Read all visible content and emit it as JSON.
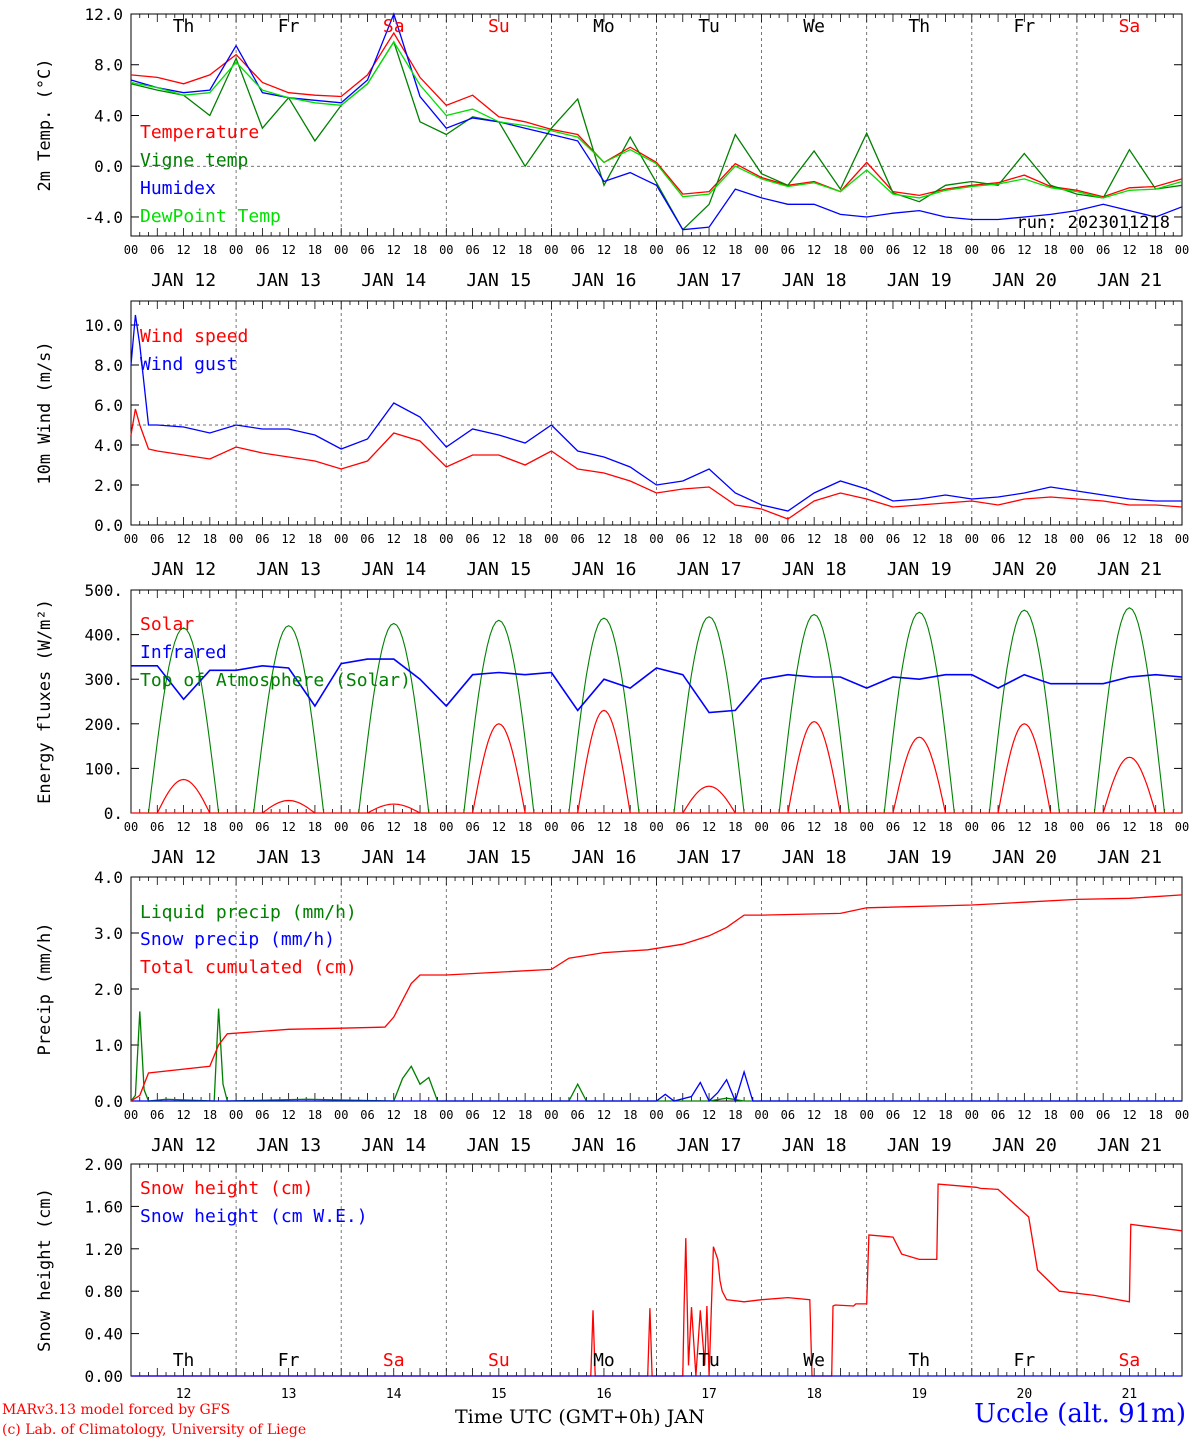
{
  "footer": {
    "model_line1": "MARv3.13 model forced by GFS",
    "model_line2": "(c) Lab. of Climatology, University of Liege",
    "x_axis_label": "Time UTC (GMT+0h) JAN",
    "station": "Uccle (alt. 91m)"
  },
  "days": [
    {
      "dow": "Th",
      "date": "JAN 12",
      "num": "12",
      "weekend": false
    },
    {
      "dow": "Fr",
      "date": "JAN 13",
      "num": "13",
      "weekend": false
    },
    {
      "dow": "Sa",
      "date": "JAN 14",
      "num": "14",
      "weekend": true
    },
    {
      "dow": "Su",
      "date": "JAN 15",
      "num": "15",
      "weekend": true
    },
    {
      "dow": "Mo",
      "date": "JAN 16",
      "num": "16",
      "weekend": false
    },
    {
      "dow": "Tu",
      "date": "JAN 17",
      "num": "17",
      "weekend": false
    },
    {
      "dow": "We",
      "date": "JAN 18",
      "num": "18",
      "weekend": false
    },
    {
      "dow": "Th",
      "date": "JAN 19",
      "num": "19",
      "weekend": false
    },
    {
      "dow": "Fr",
      "date": "JAN 20",
      "num": "20",
      "weekend": false
    },
    {
      "dow": "Sa",
      "date": "JAN 21",
      "num": "21",
      "weekend": true
    }
  ],
  "hour_labels": [
    "00",
    "06",
    "12",
    "18"
  ],
  "colors": {
    "red": "#ff0000",
    "green": "#008000",
    "blue": "#0000ff",
    "light_green": "#00e000",
    "weekend": "#ff0000"
  },
  "chart_data": [
    {
      "id": "temp",
      "type": "line",
      "ylabel": "2m Temp. (°C)",
      "ylim": [
        -5.5,
        12.0
      ],
      "ticks": [
        "12.0",
        "8.0",
        "4.0",
        "0.0",
        "-4.0"
      ],
      "tick_values": [
        12,
        8,
        4,
        0,
        -4
      ],
      "ref_line": 0,
      "annotation": "run: 2023011218",
      "series": [
        {
          "name": "Temperature",
          "color": "#ff0000",
          "x": [
            0,
            6,
            12,
            18,
            24,
            30,
            36,
            42,
            48,
            54,
            60,
            66,
            72,
            78,
            84,
            90,
            96,
            102,
            108,
            114,
            120,
            126,
            132,
            138,
            144,
            150,
            156,
            162,
            168,
            174,
            180,
            186,
            192,
            198,
            204,
            210,
            216,
            222,
            228,
            234,
            240
          ],
          "values": [
            7.2,
            7.0,
            6.5,
            7.2,
            8.8,
            6.6,
            5.8,
            5.6,
            5.5,
            7.2,
            10.5,
            7.0,
            4.8,
            5.6,
            3.9,
            3.5,
            2.9,
            2.5,
            0.3,
            1.5,
            0.3,
            -2.2,
            -2.0,
            0.2,
            -0.9,
            -1.5,
            -1.2,
            -2.0,
            0.3,
            -2.0,
            -2.3,
            -1.8,
            -1.5,
            -1.3,
            -0.7,
            -1.6,
            -1.9,
            -2.4,
            -1.7,
            -1.6,
            -1.0
          ]
        },
        {
          "name": "Vigne temp",
          "color": "#008000",
          "x": [
            0,
            6,
            12,
            18,
            24,
            30,
            36,
            42,
            48,
            54,
            60,
            66,
            72,
            78,
            84,
            90,
            96,
            102,
            108,
            114,
            120,
            126,
            132,
            138,
            144,
            150,
            156,
            162,
            168,
            174,
            180,
            186,
            192,
            198,
            204,
            210,
            216,
            222,
            228,
            234,
            240
          ],
          "values": [
            6.5,
            6.0,
            5.6,
            4.0,
            8.5,
            3.0,
            5.4,
            2.0,
            4.8,
            6.5,
            9.8,
            3.5,
            2.5,
            3.9,
            3.5,
            0.0,
            3.0,
            5.3,
            -1.5,
            2.3,
            -1.3,
            -5.0,
            -3.0,
            2.5,
            -0.6,
            -1.5,
            1.2,
            -1.8,
            2.6,
            -2.1,
            -2.8,
            -1.5,
            -1.2,
            -1.5,
            1.0,
            -1.5,
            -2.2,
            -2.5,
            1.3,
            -1.8,
            -1.5
          ]
        },
        {
          "name": "Humidex",
          "color": "#0000ff",
          "x": [
            0,
            6,
            12,
            18,
            24,
            30,
            36,
            42,
            48,
            54,
            60,
            66,
            72,
            78,
            84,
            90,
            96,
            102,
            108,
            114,
            120,
            126,
            132,
            138,
            144,
            150,
            156,
            162,
            168,
            174,
            180,
            186,
            192,
            198,
            204,
            210,
            216,
            222,
            228,
            234,
            240
          ],
          "values": [
            6.8,
            6.2,
            5.8,
            6.0,
            9.5,
            5.8,
            5.4,
            5.2,
            5.0,
            6.8,
            12.0,
            5.5,
            3.0,
            3.8,
            3.5,
            3.0,
            2.5,
            2.0,
            -1.2,
            -0.5,
            -1.5,
            -5.0,
            -4.8,
            -1.8,
            -2.5,
            -3.0,
            -3.0,
            -3.8,
            -4.0,
            -3.7,
            -3.5,
            -4.0,
            -4.2,
            -4.2,
            -4.0,
            -3.8,
            -3.5,
            -3.0,
            -3.5,
            -4.0,
            -3.2
          ]
        },
        {
          "name": "DewPoint Temp",
          "color": "#00e000",
          "x": [
            0,
            6,
            12,
            18,
            24,
            30,
            36,
            42,
            48,
            54,
            60,
            66,
            72,
            78,
            84,
            90,
            96,
            102,
            108,
            114,
            120,
            126,
            132,
            138,
            144,
            150,
            156,
            162,
            168,
            174,
            180,
            186,
            192,
            198,
            204,
            210,
            216,
            222,
            228,
            234,
            240
          ],
          "values": [
            6.6,
            6.2,
            5.6,
            5.8,
            8.2,
            6.0,
            5.4,
            5.0,
            4.8,
            6.5,
            9.8,
            6.4,
            4.0,
            4.5,
            3.5,
            3.2,
            2.8,
            2.3,
            0.3,
            1.3,
            0.2,
            -2.4,
            -2.2,
            0.0,
            -1.0,
            -1.6,
            -1.3,
            -2.0,
            -0.3,
            -2.2,
            -2.5,
            -1.9,
            -1.6,
            -1.4,
            -1.0,
            -1.7,
            -2.0,
            -2.5,
            -1.9,
            -1.8,
            -1.2
          ]
        }
      ]
    },
    {
      "id": "wind",
      "type": "line",
      "ylabel": "10m Wind (m/s)",
      "ylim": [
        0,
        11.2
      ],
      "ticks": [
        "10.0",
        "8.0",
        "6.0",
        "4.0",
        "2.0",
        "0.0"
      ],
      "tick_values": [
        10,
        8,
        6,
        4,
        2,
        0
      ],
      "ref_line": 5,
      "series": [
        {
          "name": "Wind speed",
          "color": "#ff0000",
          "x": [
            0,
            1,
            2,
            4,
            6,
            12,
            18,
            24,
            30,
            36,
            42,
            48,
            54,
            60,
            66,
            72,
            78,
            84,
            90,
            96,
            102,
            108,
            114,
            120,
            126,
            132,
            138,
            144,
            150,
            156,
            162,
            168,
            174,
            180,
            186,
            192,
            198,
            204,
            210,
            216,
            222,
            228,
            234,
            240
          ],
          "values": [
            4.5,
            5.8,
            5.0,
            3.8,
            3.7,
            3.5,
            3.3,
            3.9,
            3.6,
            3.4,
            3.2,
            2.8,
            3.2,
            4.6,
            4.2,
            2.9,
            3.5,
            3.5,
            3.0,
            3.7,
            2.8,
            2.6,
            2.2,
            1.6,
            1.8,
            1.9,
            1.0,
            0.8,
            0.3,
            1.2,
            1.6,
            1.3,
            0.9,
            1.0,
            1.1,
            1.2,
            1.0,
            1.3,
            1.4,
            1.3,
            1.2,
            1.0,
            1.0,
            0.9
          ]
        },
        {
          "name": "Wind gust",
          "color": "#0000ff",
          "x": [
            0,
            1,
            2,
            4,
            6,
            12,
            18,
            24,
            30,
            36,
            42,
            48,
            54,
            60,
            66,
            72,
            78,
            84,
            90,
            96,
            102,
            108,
            114,
            120,
            126,
            132,
            138,
            144,
            150,
            156,
            162,
            168,
            174,
            180,
            186,
            192,
            198,
            204,
            210,
            216,
            222,
            228,
            234,
            240
          ],
          "values": [
            8.0,
            10.5,
            9.0,
            5.0,
            5.0,
            4.9,
            4.6,
            5.0,
            4.8,
            4.8,
            4.5,
            3.8,
            4.3,
            6.1,
            5.4,
            3.9,
            4.8,
            4.5,
            4.1,
            5.0,
            3.7,
            3.4,
            2.9,
            2.0,
            2.2,
            2.8,
            1.6,
            1.0,
            0.7,
            1.6,
            2.2,
            1.8,
            1.2,
            1.3,
            1.5,
            1.3,
            1.4,
            1.6,
            1.9,
            1.7,
            1.5,
            1.3,
            1.2,
            1.2
          ]
        }
      ]
    },
    {
      "id": "energy",
      "type": "line",
      "ylabel": "Energy fluxes (W/m²)",
      "ylim": [
        0,
        500
      ],
      "ticks": [
        "500.",
        "400.",
        "300.",
        "200.",
        "100.",
        "0."
      ],
      "tick_values": [
        500,
        400,
        300,
        200,
        100,
        0
      ],
      "solar_peaks": [
        75,
        28,
        20,
        200,
        230,
        60,
        205,
        170,
        200,
        125
      ],
      "toa_peaks": [
        415,
        420,
        425,
        432,
        437,
        440,
        445,
        450,
        455,
        460
      ],
      "series": [
        {
          "name": "Solar",
          "color": "#ff0000"
        },
        {
          "name": "Infrared",
          "color": "#0000ff",
          "x": [
            0,
            6,
            12,
            18,
            24,
            30,
            36,
            42,
            48,
            54,
            60,
            66,
            72,
            78,
            84,
            90,
            96,
            102,
            108,
            114,
            120,
            126,
            132,
            138,
            144,
            150,
            156,
            162,
            168,
            174,
            180,
            186,
            192,
            198,
            204,
            210,
            216,
            222,
            228,
            234,
            240
          ],
          "values": [
            330,
            330,
            255,
            320,
            320,
            330,
            325,
            240,
            335,
            345,
            345,
            300,
            240,
            310,
            315,
            310,
            315,
            230,
            300,
            280,
            325,
            310,
            225,
            230,
            300,
            310,
            305,
            305,
            280,
            305,
            300,
            310,
            310,
            280,
            310,
            290,
            290,
            290,
            305,
            310,
            305
          ]
        },
        {
          "name": "Top of Atmosphere (Solar)",
          "color": "#008000"
        }
      ]
    },
    {
      "id": "precip",
      "type": "line",
      "ylabel": "Precip (mm/h)",
      "ylim": [
        0,
        4.0
      ],
      "ticks": [
        "4.0",
        "3.0",
        "2.0",
        "1.0",
        "0.0"
      ],
      "tick_values": [
        4,
        3,
        2,
        1,
        0
      ],
      "series": [
        {
          "name": "Liquid precip (mm/h)",
          "color": "#008000",
          "x": [
            0,
            1,
            2,
            3,
            4,
            8,
            19,
            20,
            21,
            22,
            40,
            60,
            62,
            64,
            66,
            68,
            70,
            100,
            102,
            104,
            132,
            136,
            140,
            240
          ],
          "values": [
            0,
            0.1,
            1.6,
            0.2,
            0.0,
            0.03,
            0.0,
            1.65,
            0.3,
            0.0,
            0.03,
            0.0,
            0.4,
            0.62,
            0.3,
            0.42,
            0.0,
            0.0,
            0.3,
            0.0,
            0.0,
            0.05,
            0.0,
            0.0
          ]
        },
        {
          "name": "Snow precip (mm/h)",
          "color": "#0000ff",
          "x": [
            0,
            120,
            122,
            124,
            128,
            130,
            132,
            134,
            136,
            138,
            140,
            142,
            240
          ],
          "values": [
            0,
            0,
            0.12,
            0.0,
            0.08,
            0.33,
            0.0,
            0.15,
            0.38,
            0.0,
            0.52,
            0.0,
            0.0
          ]
        },
        {
          "name": "Total cumulated (cm)",
          "color": "#ff0000",
          "x": [
            0,
            2,
            4,
            18,
            20,
            22,
            36,
            48,
            58,
            60,
            64,
            66,
            72,
            96,
            100,
            108,
            118,
            126,
            132,
            136,
            140,
            144,
            162,
            168,
            192,
            204,
            216,
            228,
            240
          ],
          "values": [
            0,
            0.1,
            0.5,
            0.62,
            1.0,
            1.2,
            1.28,
            1.3,
            1.32,
            1.5,
            2.1,
            2.25,
            2.25,
            2.35,
            2.55,
            2.65,
            2.7,
            2.8,
            2.95,
            3.1,
            3.32,
            3.32,
            3.35,
            3.45,
            3.5,
            3.55,
            3.6,
            3.62,
            3.68
          ]
        }
      ]
    },
    {
      "id": "snow",
      "type": "line",
      "ylabel": "Snow height (cm)",
      "ylim": [
        0,
        2.0
      ],
      "ticks": [
        "2.00",
        "1.60",
        "1.20",
        "0.80",
        "0.40",
        "0.00"
      ],
      "tick_values": [
        2.0,
        1.6,
        1.2,
        0.8,
        0.4,
        0.0
      ],
      "series": [
        {
          "name": "Snow height (cm)",
          "color": "#ff0000",
          "x": [
            0,
            105,
            105.5,
            106,
            118,
            118.5,
            119,
            126,
            126.3,
            126.7,
            127.3,
            128,
            129,
            130,
            131,
            131.5,
            132,
            133,
            134,
            134.5,
            135,
            136,
            140,
            144,
            150,
            155,
            155.5,
            160,
            160.3,
            160.8,
            165,
            165.5,
            168,
            168.5,
            174,
            176,
            180,
            184,
            184.3,
            193,
            194,
            198,
            205,
            207,
            212,
            220,
            228,
            228.3,
            240
          ],
          "values": [
            0,
            0,
            0.62,
            0,
            0,
            0.64,
            0,
            0,
            0.65,
            1.3,
            0.1,
            0.65,
            0,
            0.62,
            0.1,
            0.66,
            0,
            1.22,
            1.1,
            0.9,
            0.8,
            0.72,
            0.7,
            0.72,
            0.74,
            0.72,
            0.0,
            0.0,
            0.66,
            0.67,
            0.66,
            0.68,
            0.68,
            1.33,
            1.31,
            1.15,
            1.1,
            1.1,
            1.81,
            1.78,
            1.77,
            1.76,
            1.5,
            1.0,
            0.8,
            0.76,
            0.7,
            1.43,
            1.37
          ]
        },
        {
          "name": "Snow height (cm W.E.)",
          "color": "#0000ff",
          "x": [
            0,
            240
          ],
          "values": [
            0,
            0
          ]
        }
      ]
    }
  ]
}
